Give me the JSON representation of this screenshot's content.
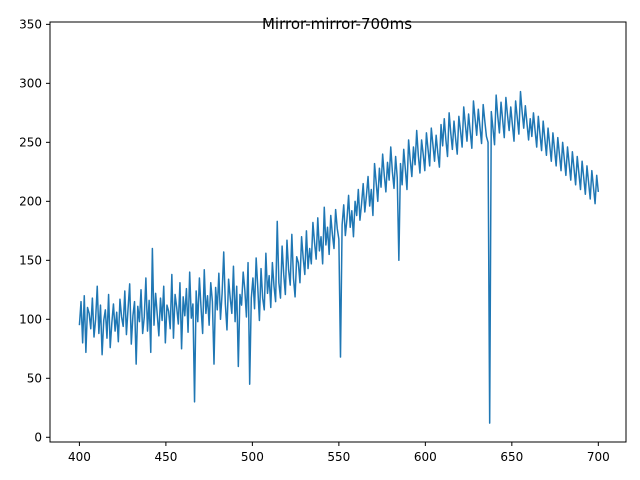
{
  "chart_data": {
    "type": "line",
    "title": "Mirror-mirror-700ms",
    "xlabel": "",
    "ylabel": "",
    "xlim": [
      383,
      716
    ],
    "ylim": [
      -4,
      352
    ],
    "xticks": [
      400,
      450,
      500,
      550,
      600,
      650,
      700
    ],
    "yticks": [
      0,
      50,
      100,
      150,
      200,
      250,
      300,
      350
    ],
    "grid": false,
    "legend": "none",
    "series": [
      {
        "color": "#1f77b4",
        "x_start": 400,
        "x_end": 700,
        "x_step": 1,
        "y": [
          95,
          115,
          80,
          120,
          72,
          110,
          105,
          92,
          118,
          85,
          100,
          128,
          88,
          112,
          70,
          99,
          108,
          84,
          121,
          76,
          97,
          113,
          90,
          106,
          81,
          117,
          102,
          94,
          124,
          87,
          109,
          130,
          79,
          103,
          115,
          62,
          111,
          98,
          125,
          88,
          102,
          135,
          90,
          116,
          72,
          160,
          95,
          122,
          104,
          86,
          118,
          99,
          128,
          80,
          112,
          107,
          92,
          138,
          84,
          121,
          110,
          96,
          131,
          75,
          119,
          103,
          126,
          89,
          140,
          101,
          113,
          30,
          124,
          98,
          135,
          110,
          88,
          142,
          105,
          120,
          95,
          131,
          115,
          62,
          127,
          108,
          139,
          100,
          122,
          157,
          113,
          91,
          134,
          118,
          105,
          145,
          98,
          128,
          60,
          121,
          112,
          140,
          125,
          102,
          148,
          45,
          118,
          135,
          109,
          152,
          127,
          99,
          143,
          118,
          108,
          156,
          122,
          137,
          110,
          148,
          128,
          115,
          183,
          131,
          118,
          162,
          138,
          121,
          167,
          142,
          129,
          172,
          135,
          119,
          153,
          148,
          131,
          170,
          152,
          138,
          175,
          143,
          160,
          147,
          182,
          165,
          151,
          186,
          158,
          170,
          147,
          195,
          163,
          178,
          155,
          188,
          172,
          160,
          193,
          177,
          168,
          68,
          180,
          197,
          171,
          185,
          205,
          178,
          192,
          170,
          200,
          188,
          210,
          184,
          198,
          215,
          191,
          205,
          221,
          196,
          210,
          188,
          232,
          216,
          200,
          228,
          212,
          240,
          222,
          208,
          233,
          218,
          246,
          225,
          211,
          238,
          220,
          150,
          232,
          214,
          244,
          227,
          210,
          252,
          235,
          221,
          246,
          231,
          260,
          239,
          224,
          252,
          240,
          226,
          258,
          244,
          230,
          262,
          248,
          234,
          256,
          241,
          229,
          265,
          247,
          270,
          252,
          238,
          275,
          258,
          244,
          268,
          253,
          240,
          272,
          260,
          246,
          280,
          265,
          251,
          274,
          259,
          245,
          285,
          270,
          256,
          278,
          263,
          249,
          282,
          268,
          255,
          250,
          12,
          276,
          262,
          248,
          290,
          272,
          258,
          284,
          269,
          254,
          288,
          273,
          260,
          280,
          265,
          251,
          285,
          271,
          257,
          293,
          276,
          262,
          281,
          266,
          252,
          270,
          255,
          275,
          260,
          246,
          272,
          257,
          243,
          268,
          253,
          239,
          262,
          248,
          234,
          258,
          244,
          230,
          254,
          240,
          226,
          250,
          236,
          222,
          246,
          232,
          218,
          242,
          228,
          214,
          238,
          224,
          210,
          234,
          220,
          206,
          230,
          216,
          202,
          226,
          212,
          198,
          222,
          208
        ]
      }
    ],
    "annotations": []
  }
}
